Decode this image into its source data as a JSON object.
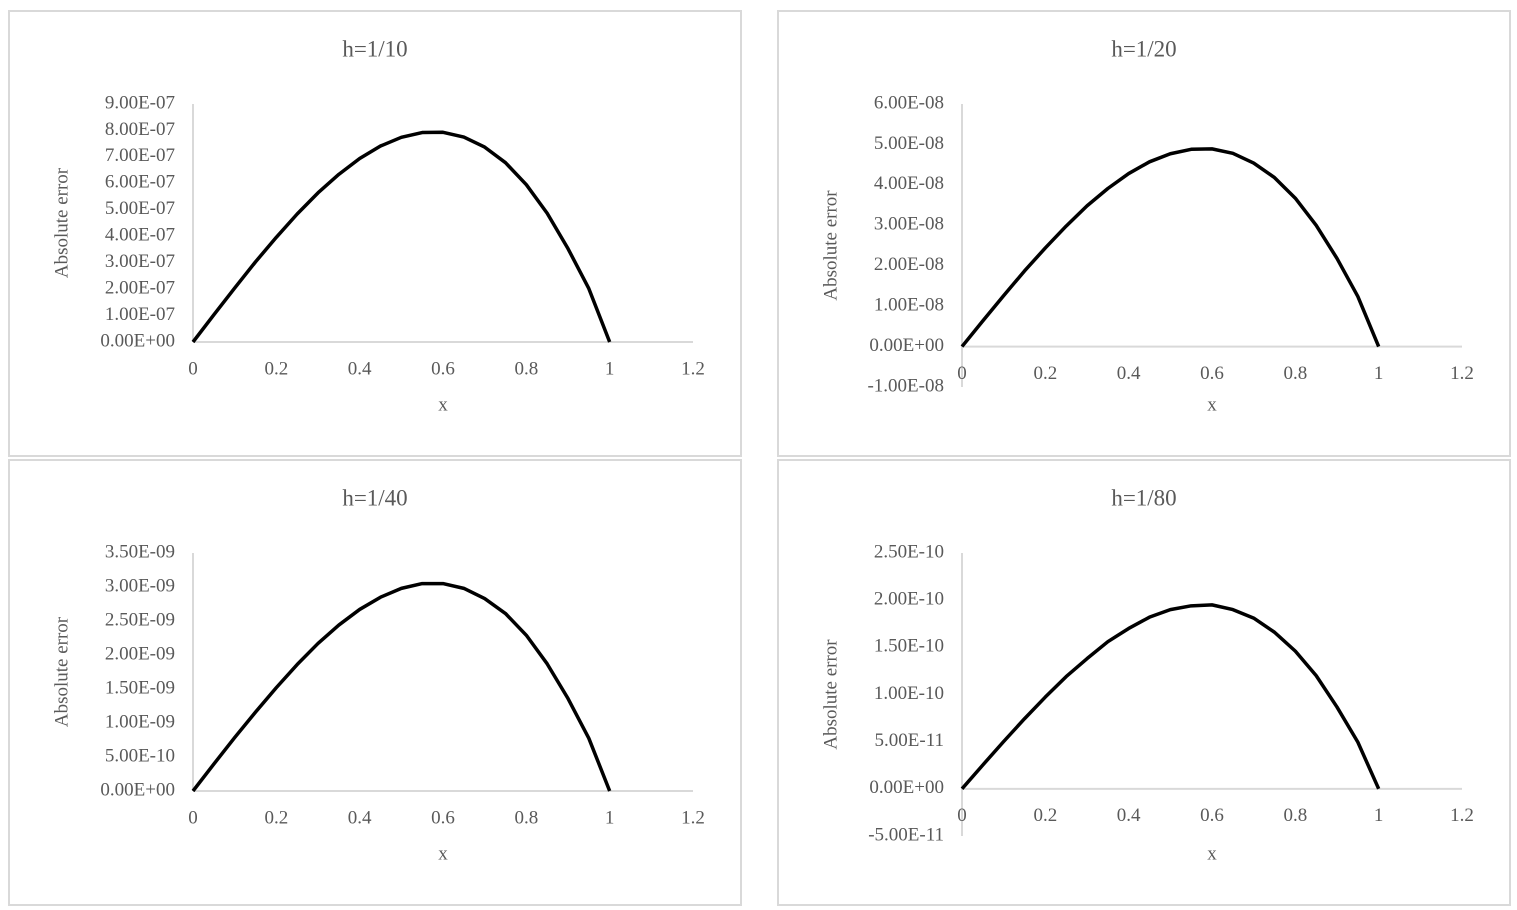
{
  "chart_data": [
    {
      "type": "line",
      "title": "h=1/10",
      "xlabel": "x",
      "ylabel": "Absolute error",
      "color": "#000000",
      "x": [
        0,
        0.05,
        0.1,
        0.15,
        0.2,
        0.25,
        0.3,
        0.35,
        0.4,
        0.45,
        0.5,
        0.55,
        0.6,
        0.65,
        0.7,
        0.75,
        0.8,
        0.85,
        0.9,
        0.95,
        1
      ],
      "values": [
        0,
        1.03e-07,
        2.04e-07,
        3.03e-07,
        3.96e-07,
        4.84e-07,
        5.64e-07,
        6.34e-07,
        6.94e-07,
        7.41e-07,
        7.74e-07,
        7.92e-07,
        7.93e-07,
        7.75e-07,
        7.37e-07,
        6.78e-07,
        5.95e-07,
        4.87e-07,
        3.53e-07,
        2.02e-07,
        0
      ],
      "xlim": [
        0,
        1.2
      ],
      "xticks": [
        0,
        0.2,
        0.4,
        0.6,
        0.8,
        1,
        1.2
      ],
      "ylim": [
        0,
        9e-07
      ],
      "yticks": [
        {
          "value": 0,
          "label": "0.00E+00"
        },
        {
          "value": 1e-07,
          "label": "1.00E-07"
        },
        {
          "value": 2e-07,
          "label": "2.00E-07"
        },
        {
          "value": 3e-07,
          "label": "3.00E-07"
        },
        {
          "value": 4e-07,
          "label": "4.00E-07"
        },
        {
          "value": 5e-07,
          "label": "5.00E-07"
        },
        {
          "value": 6e-07,
          "label": "6.00E-07"
        },
        {
          "value": 7e-07,
          "label": "7.00E-07"
        },
        {
          "value": 8e-07,
          "label": "8.00E-07"
        },
        {
          "value": 9e-07,
          "label": "9.00E-07"
        }
      ]
    },
    {
      "type": "line",
      "title": "h=1/20",
      "xlabel": "x",
      "ylabel": "Absolute error",
      "color": "#000000",
      "x": [
        0,
        0.05,
        0.1,
        0.15,
        0.2,
        0.25,
        0.3,
        0.35,
        0.4,
        0.45,
        0.5,
        0.55,
        0.6,
        0.65,
        0.7,
        0.75,
        0.8,
        0.85,
        0.9,
        0.95,
        1
      ],
      "values": [
        0,
        6.35e-09,
        1.26e-08,
        1.87e-08,
        2.44e-08,
        2.98e-08,
        3.48e-08,
        3.91e-08,
        4.28e-08,
        4.57e-08,
        4.77e-08,
        4.88e-08,
        4.89e-08,
        4.78e-08,
        4.54e-08,
        4.18e-08,
        3.67e-08,
        3e-08,
        2.18e-08,
        1.24e-08,
        0
      ],
      "xlim": [
        0,
        1.2
      ],
      "xticks": [
        0,
        0.2,
        0.4,
        0.6,
        0.8,
        1,
        1.2
      ],
      "ylim": [
        -1e-08,
        6e-08
      ],
      "yticks": [
        {
          "value": -1e-08,
          "label": "-1.00E-08"
        },
        {
          "value": 0,
          "label": "0.00E+00"
        },
        {
          "value": 1e-08,
          "label": "1.00E-08"
        },
        {
          "value": 2e-08,
          "label": "2.00E-08"
        },
        {
          "value": 3e-08,
          "label": "3.00E-08"
        },
        {
          "value": 4e-08,
          "label": "4.00E-08"
        },
        {
          "value": 5e-08,
          "label": "5.00E-08"
        },
        {
          "value": 6e-08,
          "label": "6.00E-08"
        }
      ]
    },
    {
      "type": "line",
      "title": "h=1/40",
      "xlabel": "x",
      "ylabel": "Absolute error",
      "color": "#000000",
      "x": [
        0,
        0.05,
        0.1,
        0.15,
        0.2,
        0.25,
        0.3,
        0.35,
        0.4,
        0.45,
        0.5,
        0.55,
        0.6,
        0.65,
        0.7,
        0.75,
        0.8,
        0.85,
        0.9,
        0.95,
        1
      ],
      "values": [
        0,
        3.96e-10,
        7.86e-10,
        1.16e-09,
        1.52e-09,
        1.86e-09,
        2.17e-09,
        2.44e-09,
        2.67e-09,
        2.85e-09,
        2.98e-09,
        3.05e-09,
        3.05e-09,
        2.98e-09,
        2.83e-09,
        2.61e-09,
        2.29e-09,
        1.87e-09,
        1.36e-09,
        7.75e-10,
        0
      ],
      "xlim": [
        0,
        1.2
      ],
      "xticks": [
        0,
        0.2,
        0.4,
        0.6,
        0.8,
        1,
        1.2
      ],
      "ylim": [
        0,
        3.5e-09
      ],
      "yticks": [
        {
          "value": 0,
          "label": "0.00E+00"
        },
        {
          "value": 5e-10,
          "label": "5.00E-10"
        },
        {
          "value": 1e-09,
          "label": "1.00E-09"
        },
        {
          "value": 1.5e-09,
          "label": "1.50E-09"
        },
        {
          "value": 2e-09,
          "label": "2.00E-09"
        },
        {
          "value": 2.5e-09,
          "label": "2.50E-09"
        },
        {
          "value": 3e-09,
          "label": "3.00E-09"
        },
        {
          "value": 3.5e-09,
          "label": "3.50E-09"
        }
      ]
    },
    {
      "type": "line",
      "title": "h=1/80",
      "xlabel": "x",
      "ylabel": "Absolute error",
      "color": "#000000",
      "x": [
        0,
        0.05,
        0.1,
        0.15,
        0.2,
        0.25,
        0.3,
        0.35,
        0.4,
        0.45,
        0.5,
        0.55,
        0.6,
        0.65,
        0.7,
        0.75,
        0.8,
        0.85,
        0.9,
        0.95,
        1
      ],
      "values": [
        0,
        2.53e-11,
        5.02e-11,
        7.43e-11,
        9.73e-11,
        1.19e-10,
        1.38e-10,
        1.56e-10,
        1.7e-10,
        1.82e-10,
        1.9e-10,
        1.94e-10,
        1.95e-10,
        1.9e-10,
        1.81e-10,
        1.66e-10,
        1.46e-10,
        1.2e-10,
        8.67e-11,
        4.95e-11,
        0
      ],
      "xlim": [
        0,
        1.2
      ],
      "xticks": [
        0,
        0.2,
        0.4,
        0.6,
        0.8,
        1,
        1.2
      ],
      "ylim": [
        -5e-11,
        2.5e-10
      ],
      "yticks": [
        {
          "value": -5e-11,
          "label": "-5.00E-11"
        },
        {
          "value": 0,
          "label": "0.00E+00"
        },
        {
          "value": 5e-11,
          "label": "5.00E-11"
        },
        {
          "value": 1e-10,
          "label": "1.00E-10"
        },
        {
          "value": 1.5e-10,
          "label": "1.50E-10"
        },
        {
          "value": 2e-10,
          "label": "2.00E-10"
        },
        {
          "value": 2.5e-10,
          "label": "2.50E-10"
        }
      ]
    }
  ]
}
